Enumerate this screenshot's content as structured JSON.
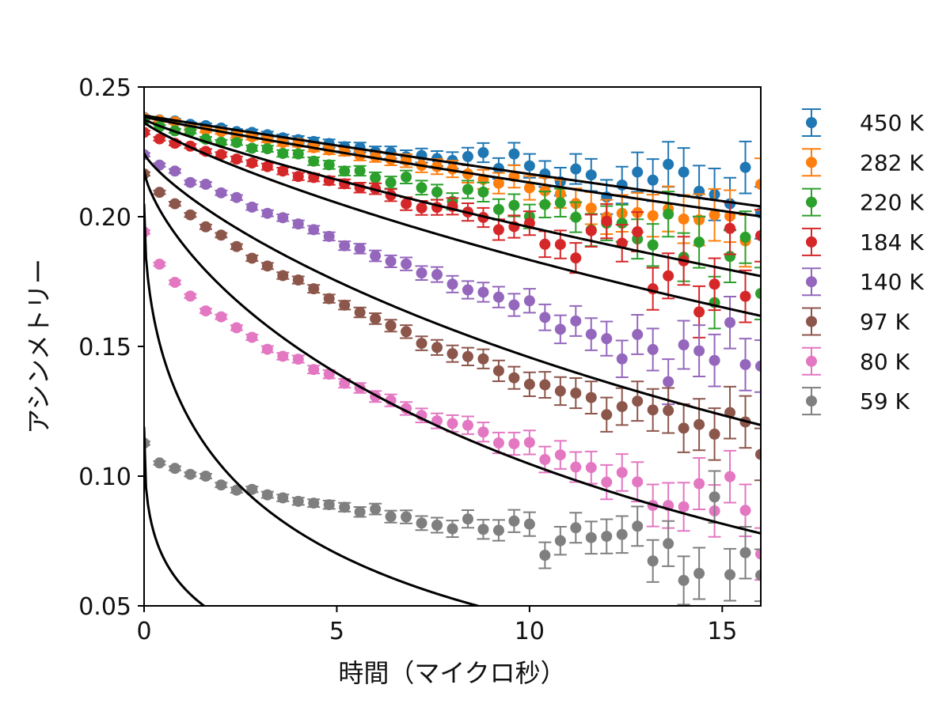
{
  "chart_data": {
    "type": "scatter",
    "title": "",
    "xlabel": "時間（マイクロ秒）",
    "ylabel": "アシンメトリー",
    "xlim": [
      0,
      16
    ],
    "ylim": [
      0.05,
      0.25
    ],
    "xticks": [
      0,
      5,
      10,
      15
    ],
    "xtick_labels": [
      "0",
      "5",
      "10",
      "15"
    ],
    "yticks": [
      0.05,
      0.1,
      0.15,
      0.2,
      0.25
    ],
    "ytick_labels": [
      "0.05",
      "0.10",
      "0.15",
      "0.20",
      "0.25"
    ],
    "grid": false,
    "legend_position": "right, outside plot",
    "fit_line_color": "#000000",
    "series": [
      {
        "name": "450 K",
        "color": "#1f77b4",
        "fit": {
          "a0": 0.239,
          "lambda": 0.0099,
          "beta": 1.0
        },
        "x": [
          0.0,
          0.4,
          0.8,
          1.2,
          1.6,
          2.0,
          2.4,
          2.8,
          3.2,
          3.6,
          4.0,
          4.4,
          4.8,
          5.2,
          5.6,
          6.0,
          6.4,
          6.8,
          7.2,
          7.6,
          8.0,
          8.4,
          8.8,
          9.2,
          9.6,
          10.0,
          10.4,
          10.8,
          11.2,
          11.6,
          12.0,
          12.4,
          12.8,
          13.2,
          13.6,
          14.0,
          14.4,
          14.8,
          15.2,
          15.6,
          16.0
        ],
        "y": [
          0.2383,
          0.2373,
          0.2369,
          0.2356,
          0.2351,
          0.2342,
          0.2328,
          0.2325,
          0.2316,
          0.2304,
          0.2297,
          0.229,
          0.2282,
          0.227,
          0.2267,
          0.225,
          0.2248,
          0.2231,
          0.2236,
          0.2224,
          0.2217,
          0.2232,
          0.2247,
          0.2186,
          0.2242,
          0.2196,
          0.2165,
          0.2135,
          0.2184,
          0.2161,
          0.2076,
          0.2122,
          0.2172,
          0.2141,
          0.2202,
          0.2172,
          0.2098,
          0.2086,
          0.205,
          0.219,
          0.2015
        ],
        "err": [
          0.0007,
          0.0007,
          0.0008,
          0.0008,
          0.0009,
          0.0009,
          0.001,
          0.0011,
          0.0012,
          0.0013,
          0.0014,
          0.0015,
          0.0016,
          0.0017,
          0.0019,
          0.0021,
          0.0023,
          0.0025,
          0.0027,
          0.0029,
          0.0032,
          0.0034,
          0.0037,
          0.004,
          0.0043,
          0.0046,
          0.005,
          0.0054,
          0.0058,
          0.0062,
          0.0066,
          0.0071,
          0.0076,
          0.0081,
          0.0087,
          0.0093,
          0.0099,
          0.01,
          0.01,
          0.01,
          0.01
        ]
      },
      {
        "name": "282 K",
        "color": "#ff7f0e",
        "fit": {
          "a0": 0.2385,
          "lambda": 0.01,
          "beta": 0.95
        },
        "x": [
          0.0,
          0.4,
          0.8,
          1.2,
          1.6,
          2.0,
          2.4,
          2.8,
          3.2,
          3.6,
          4.0,
          4.4,
          4.8,
          5.2,
          5.6,
          6.0,
          6.4,
          6.8,
          7.2,
          7.6,
          8.0,
          8.4,
          8.8,
          9.2,
          9.6,
          10.0,
          10.4,
          10.8,
          11.2,
          11.6,
          12.0,
          12.4,
          12.8,
          13.2,
          13.6,
          14.0,
          14.4,
          14.8,
          15.2,
          15.6,
          16.0
        ],
        "y": [
          0.2381,
          0.2372,
          0.2366,
          0.2342,
          0.2334,
          0.2328,
          0.2314,
          0.2308,
          0.2299,
          0.2286,
          0.2284,
          0.2266,
          0.2257,
          0.2252,
          0.2236,
          0.2232,
          0.2221,
          0.2216,
          0.2198,
          0.2193,
          0.2184,
          0.2165,
          0.2144,
          0.2129,
          0.2155,
          0.2111,
          0.21,
          0.2088,
          0.2051,
          0.2033,
          0.1999,
          0.2013,
          0.2016,
          0.2004,
          0.203,
          0.1991,
          0.1988,
          0.2007,
          0.2002,
          0.1907,
          0.2125
        ],
        "err": [
          0.0007,
          0.0007,
          0.0008,
          0.0008,
          0.0009,
          0.0009,
          0.001,
          0.0011,
          0.0012,
          0.0013,
          0.0014,
          0.0015,
          0.0016,
          0.0017,
          0.0019,
          0.0021,
          0.0023,
          0.0025,
          0.0027,
          0.0029,
          0.0032,
          0.0034,
          0.0037,
          0.004,
          0.0043,
          0.0046,
          0.005,
          0.0054,
          0.0058,
          0.0062,
          0.0066,
          0.0071,
          0.0076,
          0.0081,
          0.0087,
          0.0093,
          0.0099,
          0.01,
          0.01,
          0.01,
          0.01
        ]
      },
      {
        "name": "220 K",
        "color": "#2ca02c",
        "fit": {
          "a0": 0.2375,
          "lambda": 0.016,
          "beta": 0.9
        },
        "x": [
          0.0,
          0.4,
          0.8,
          1.2,
          1.6,
          2.0,
          2.4,
          2.8,
          3.2,
          3.6,
          4.0,
          4.4,
          4.8,
          5.2,
          5.6,
          6.0,
          6.4,
          6.8,
          7.2,
          7.6,
          8.0,
          8.4,
          8.8,
          9.2,
          9.6,
          10.0,
          10.4,
          10.8,
          11.2,
          11.6,
          12.0,
          12.4,
          12.8,
          13.2,
          13.6,
          14.0,
          14.4,
          14.8,
          15.2,
          15.6,
          16.0
        ],
        "y": [
          0.2371,
          0.2347,
          0.2331,
          0.2329,
          0.2299,
          0.2287,
          0.2286,
          0.2264,
          0.2262,
          0.2244,
          0.2242,
          0.2214,
          0.22,
          0.2176,
          0.2177,
          0.215,
          0.2132,
          0.2153,
          0.2112,
          0.2095,
          0.2059,
          0.2105,
          0.2095,
          0.2028,
          0.2044,
          0.2001,
          0.2047,
          0.2054,
          0.1998,
          0.1949,
          0.1975,
          0.1975,
          0.1914,
          0.1891,
          0.201,
          0.1844,
          0.1902,
          0.1669,
          0.1847,
          0.1921,
          0.1704
        ],
        "err": [
          0.0007,
          0.0007,
          0.0008,
          0.0008,
          0.0009,
          0.0009,
          0.001,
          0.0011,
          0.0012,
          0.0013,
          0.0014,
          0.0015,
          0.0016,
          0.0017,
          0.0019,
          0.0021,
          0.0023,
          0.0025,
          0.0027,
          0.0029,
          0.0032,
          0.0034,
          0.0037,
          0.004,
          0.0043,
          0.0046,
          0.005,
          0.0054,
          0.0058,
          0.0062,
          0.0066,
          0.0071,
          0.0076,
          0.0081,
          0.0087,
          0.0093,
          0.0099,
          0.01,
          0.01,
          0.01,
          0.01
        ]
      },
      {
        "name": "184 K",
        "color": "#d62728",
        "fit": {
          "a0": 0.2365,
          "lambda": 0.02,
          "beta": 0.85
        },
        "x": [
          0.0,
          0.4,
          0.8,
          1.2,
          1.6,
          2.0,
          2.4,
          2.8,
          3.2,
          3.6,
          4.0,
          4.4,
          4.8,
          5.2,
          5.6,
          6.0,
          6.4,
          6.8,
          7.2,
          7.6,
          8.0,
          8.4,
          8.8,
          9.2,
          9.6,
          10.0,
          10.4,
          10.8,
          11.2,
          11.6,
          12.0,
          12.4,
          12.8,
          13.2,
          13.6,
          14.0,
          14.4,
          14.8,
          15.2,
          15.6,
          16.0
        ],
        "y": [
          0.2325,
          0.23,
          0.2283,
          0.2272,
          0.2252,
          0.224,
          0.2222,
          0.2207,
          0.2193,
          0.2176,
          0.2155,
          0.2151,
          0.2139,
          0.2127,
          0.2112,
          0.2108,
          0.2083,
          0.205,
          0.2034,
          0.2036,
          0.204,
          0.2018,
          0.1997,
          0.195,
          0.1962,
          0.1975,
          0.1894,
          0.1893,
          0.1841,
          0.1946,
          0.1983,
          0.1898,
          0.1942,
          0.1722,
          0.1772,
          0.183,
          0.1633,
          0.174,
          0.1955,
          0.1693,
          0.1927
        ],
        "err": [
          0.0007,
          0.0007,
          0.0008,
          0.0008,
          0.0009,
          0.0009,
          0.001,
          0.0011,
          0.0012,
          0.0013,
          0.0014,
          0.0015,
          0.0016,
          0.0017,
          0.0019,
          0.0021,
          0.0023,
          0.0025,
          0.0027,
          0.0029,
          0.0032,
          0.0034,
          0.0037,
          0.004,
          0.0043,
          0.0046,
          0.005,
          0.0054,
          0.0058,
          0.0062,
          0.0066,
          0.0071,
          0.0076,
          0.0081,
          0.0087,
          0.0093,
          0.0099,
          0.01,
          0.01,
          0.01,
          0.01
        ]
      },
      {
        "name": "140 K",
        "color": "#9467bd",
        "fit": {
          "a0": 0.2245,
          "lambda": 0.035,
          "beta": 0.8
        },
        "x": [
          0.0,
          0.4,
          0.8,
          1.2,
          1.6,
          2.0,
          2.4,
          2.8,
          3.2,
          3.6,
          4.0,
          4.4,
          4.8,
          5.2,
          5.6,
          6.0,
          6.4,
          6.8,
          7.2,
          7.6,
          8.0,
          8.4,
          8.8,
          9.2,
          9.6,
          10.0,
          10.4,
          10.8,
          11.2,
          11.6,
          12.0,
          12.4,
          12.8,
          13.2,
          13.6,
          14.0,
          14.4,
          14.8,
          15.2,
          15.6,
          16.0
        ],
        "y": [
          0.2239,
          0.2199,
          0.2176,
          0.2132,
          0.2125,
          0.2092,
          0.2074,
          0.2037,
          0.2013,
          0.1996,
          0.1972,
          0.195,
          0.1924,
          0.1888,
          0.1877,
          0.1849,
          0.1828,
          0.1818,
          0.1783,
          0.1777,
          0.174,
          0.1718,
          0.1709,
          0.169,
          0.166,
          0.1676,
          0.1612,
          0.1566,
          0.1598,
          0.1547,
          0.153,
          0.1452,
          0.1546,
          0.1488,
          0.1364,
          0.1506,
          0.1483,
          0.1446,
          0.1592,
          0.143,
          0.1424
        ],
        "err": [
          0.0007,
          0.0007,
          0.0008,
          0.0008,
          0.0009,
          0.0009,
          0.001,
          0.0011,
          0.0012,
          0.0013,
          0.0014,
          0.0015,
          0.0016,
          0.0017,
          0.0019,
          0.0021,
          0.0023,
          0.0025,
          0.0027,
          0.0029,
          0.0032,
          0.0034,
          0.0037,
          0.004,
          0.0043,
          0.0046,
          0.005,
          0.0054,
          0.0058,
          0.0062,
          0.0066,
          0.0071,
          0.0076,
          0.0081,
          0.0087,
          0.0093,
          0.0099,
          0.01,
          0.01,
          0.01,
          0.01
        ]
      },
      {
        "name": "97 K",
        "color": "#8c564b",
        "fit": {
          "a0": 0.218,
          "lambda": 0.065,
          "beta": 0.72
        },
        "x": [
          0.0,
          0.4,
          0.8,
          1.2,
          1.6,
          2.0,
          2.4,
          2.8,
          3.2,
          3.6,
          4.0,
          4.4,
          4.8,
          5.2,
          5.6,
          6.0,
          6.4,
          6.8,
          7.2,
          7.6,
          8.0,
          8.4,
          8.8,
          9.2,
          9.6,
          10.0,
          10.4,
          10.8,
          11.2,
          11.6,
          12.0,
          12.4,
          12.8,
          13.2,
          13.6,
          14.0,
          14.4,
          14.8,
          15.2,
          15.6,
          16.0
        ],
        "y": [
          0.2165,
          0.2094,
          0.205,
          0.2007,
          0.1961,
          0.1929,
          0.1885,
          0.184,
          0.181,
          0.1773,
          0.1756,
          0.1722,
          0.1684,
          0.1659,
          0.1631,
          0.1607,
          0.158,
          0.1557,
          0.1512,
          0.1496,
          0.1472,
          0.1461,
          0.1452,
          0.1406,
          0.1379,
          0.1354,
          0.1352,
          0.1328,
          0.132,
          0.1303,
          0.1237,
          0.1268,
          0.1289,
          0.1255,
          0.1253,
          0.1185,
          0.1199,
          0.1162,
          0.1245,
          0.1209,
          0.1084
        ],
        "err": [
          0.0007,
          0.0007,
          0.0008,
          0.0008,
          0.0009,
          0.0009,
          0.001,
          0.0011,
          0.0012,
          0.0013,
          0.0014,
          0.0015,
          0.0016,
          0.0017,
          0.0019,
          0.0021,
          0.0023,
          0.0025,
          0.0027,
          0.0029,
          0.0032,
          0.0034,
          0.0037,
          0.004,
          0.0043,
          0.0046,
          0.005,
          0.0054,
          0.0058,
          0.0062,
          0.0066,
          0.0071,
          0.0076,
          0.0081,
          0.0087,
          0.0093,
          0.0099,
          0.01,
          0.01,
          0.01,
          0.01
        ]
      },
      {
        "name": "80 K",
        "color": "#e377c2",
        "fit": {
          "a0": 0.205,
          "lambda": 0.23,
          "beta": 0.5
        },
        "x": [
          0.0,
          0.4,
          0.8,
          1.2,
          1.6,
          2.0,
          2.4,
          2.8,
          3.2,
          3.6,
          4.0,
          4.4,
          4.8,
          5.2,
          5.6,
          6.0,
          6.4,
          6.8,
          7.2,
          7.6,
          8.0,
          8.4,
          8.8,
          9.2,
          9.6,
          10.0,
          10.4,
          10.8,
          11.2,
          11.6,
          12.0,
          12.4,
          12.8,
          13.2,
          13.6,
          14.0,
          14.4,
          14.8,
          15.2,
          15.6,
          16.0
        ],
        "y": [
          0.1941,
          0.1817,
          0.1747,
          0.1694,
          0.1637,
          0.1614,
          0.1572,
          0.1535,
          0.1489,
          0.1462,
          0.1451,
          0.1411,
          0.1393,
          0.1358,
          0.134,
          0.1307,
          0.1292,
          0.1261,
          0.1234,
          0.1213,
          0.1203,
          0.1196,
          0.117,
          0.1128,
          0.1125,
          0.113,
          0.1064,
          0.1082,
          0.1035,
          0.1033,
          0.0977,
          0.1014,
          0.0978,
          0.0887,
          0.0887,
          0.0882,
          0.0971,
          0.0866,
          0.0998,
          0.0868,
          0.07
        ],
        "err": [
          0.0007,
          0.0007,
          0.0008,
          0.0008,
          0.0009,
          0.0009,
          0.001,
          0.0011,
          0.0012,
          0.0013,
          0.0014,
          0.0015,
          0.0016,
          0.0017,
          0.0019,
          0.0021,
          0.0023,
          0.0025,
          0.0027,
          0.0029,
          0.0032,
          0.0034,
          0.0037,
          0.004,
          0.0043,
          0.0046,
          0.005,
          0.0054,
          0.0058,
          0.0062,
          0.0066,
          0.0071,
          0.0076,
          0.0081,
          0.0087,
          0.0093,
          0.0099,
          0.01,
          0.01,
          0.01,
          0.01
        ]
      },
      {
        "name": "59 K",
        "color": "#7f7f7f",
        "fit": {
          "a0": 0.119,
          "lambda": 0.45,
          "beta": 0.4
        },
        "x": [
          0.0,
          0.4,
          0.8,
          1.2,
          1.6,
          2.0,
          2.4,
          2.8,
          3.2,
          3.6,
          4.0,
          4.4,
          4.8,
          5.2,
          5.6,
          6.0,
          6.4,
          6.8,
          7.2,
          7.6,
          8.0,
          8.4,
          8.8,
          9.2,
          9.6,
          10.0,
          10.4,
          10.8,
          11.2,
          11.6,
          12.0,
          12.4,
          12.8,
          13.2,
          13.6,
          14.0,
          14.4,
          14.8,
          15.2,
          15.6,
          16.0
        ],
        "y": [
          0.1127,
          0.1051,
          0.103,
          0.1007,
          0.1,
          0.0966,
          0.0946,
          0.0949,
          0.0928,
          0.0916,
          0.0903,
          0.0896,
          0.089,
          0.088,
          0.0862,
          0.0873,
          0.0844,
          0.0843,
          0.0819,
          0.0811,
          0.0797,
          0.0835,
          0.0795,
          0.0791,
          0.0827,
          0.0815,
          0.0695,
          0.0751,
          0.0801,
          0.0763,
          0.0768,
          0.0775,
          0.0807,
          0.0673,
          0.074,
          0.0598,
          0.0625,
          0.092,
          0.062,
          0.0705,
          0.0618
        ],
        "err": [
          0.0007,
          0.0007,
          0.0008,
          0.0008,
          0.0009,
          0.0009,
          0.001,
          0.0011,
          0.0012,
          0.0013,
          0.0014,
          0.0015,
          0.0016,
          0.0017,
          0.0019,
          0.0021,
          0.0023,
          0.0025,
          0.0027,
          0.0029,
          0.0032,
          0.0034,
          0.0037,
          0.004,
          0.0043,
          0.0046,
          0.005,
          0.0054,
          0.0058,
          0.0062,
          0.0066,
          0.0071,
          0.0076,
          0.0081,
          0.0087,
          0.0093,
          0.0099,
          0.01,
          0.01,
          0.01,
          0.01
        ]
      }
    ]
  }
}
